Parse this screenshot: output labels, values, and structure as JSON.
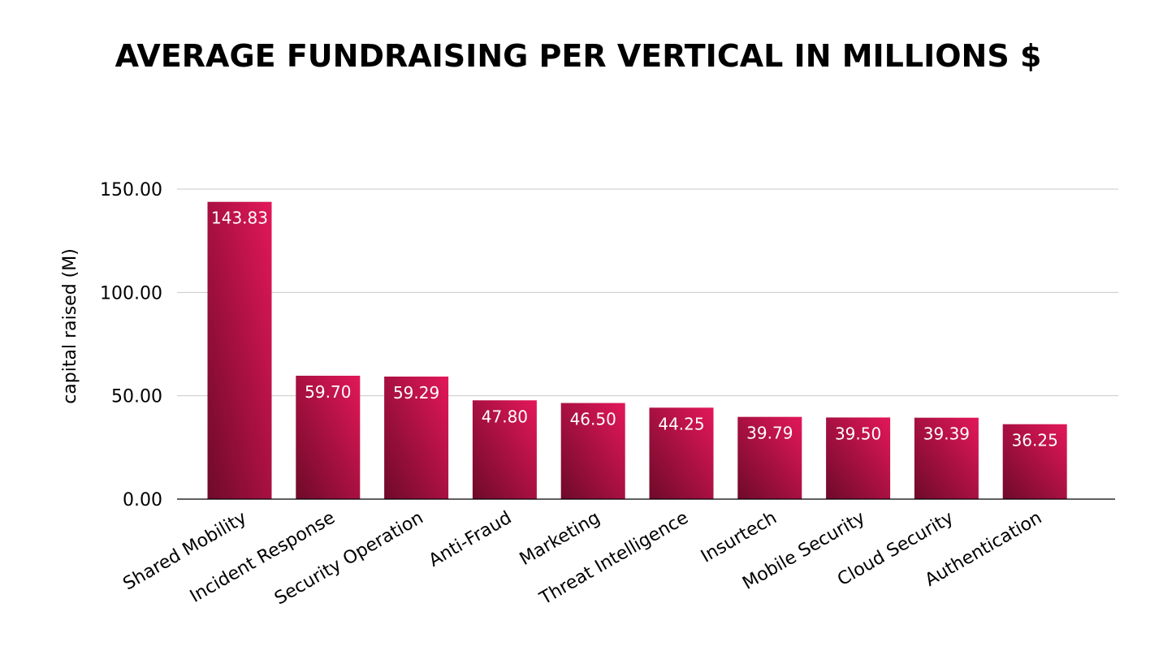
{
  "chart_data": {
    "type": "bar",
    "title": "AVERAGE FUNDRAISING PER VERTICAL IN MILLIONS $",
    "xlabel": "",
    "ylabel": "capital raised (M)",
    "ylim": [
      0,
      150
    ],
    "yticks": [
      "0.00",
      "50.00",
      "100.00",
      "150.00"
    ],
    "grid": true,
    "categories": [
      "Shared Mobility",
      "Incident Response",
      "Security Operation",
      "Anti-Fraud",
      "Marketing",
      "Threat Intelligence",
      "Insurtech",
      "Mobile Security",
      "Cloud Security",
      "Authentication"
    ],
    "values": [
      143.83,
      59.7,
      59.29,
      47.8,
      46.5,
      44.25,
      39.79,
      39.5,
      39.39,
      36.25
    ],
    "value_labels": [
      "143.83",
      "59.70",
      "59.29",
      "47.80",
      "46.50",
      "44.25",
      "39.79",
      "39.50",
      "39.39",
      "36.25"
    ],
    "colors": {
      "bar_light": "#e3175a",
      "bar_dark": "#6e0a2a",
      "grid": "#c8c8c8",
      "axis": "#000000"
    }
  }
}
